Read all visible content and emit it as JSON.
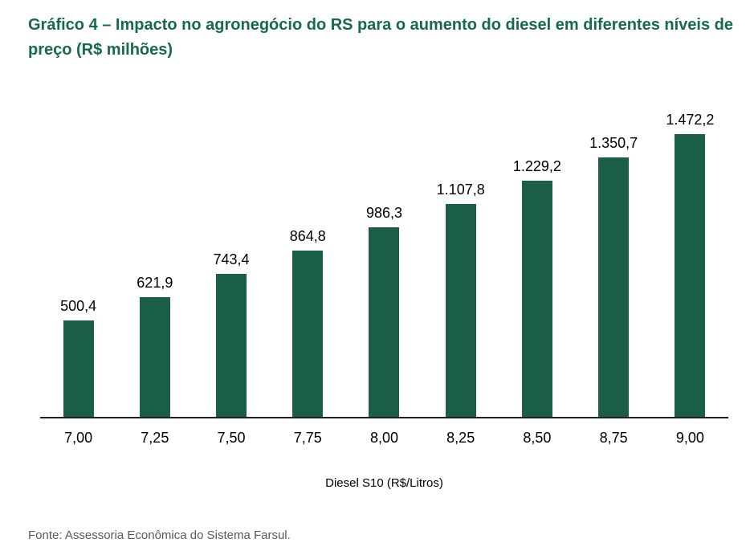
{
  "title": "Gráfico 4 – Impacto no agronegócio do RS para o aumento do diesel em diferentes níveis de preço (R$ milhões)",
  "source": "Fonte: Assessoria Econômica do Sistema Farsul.",
  "colors": {
    "bar": "#1b5e46",
    "title": "#17694e",
    "axis_line": "#1f1f1f",
    "label_text": "#000000",
    "source_text": "#595959"
  },
  "chart_data": {
    "type": "bar",
    "title": "Gráfico 4 – Impacto no agronegócio do RS para o aumento do diesel em diferentes níveis de preço (R$ milhões)",
    "categories": [
      "7,00",
      "7,25",
      "7,50",
      "7,75",
      "8,00",
      "8,25",
      "8,50",
      "8,75",
      "9,00"
    ],
    "values": [
      500.4,
      621.9,
      743.4,
      864.8,
      986.3,
      1107.8,
      1229.2,
      1350.7,
      1472.2
    ],
    "value_labels": [
      "500,4",
      "621,9",
      "743,4",
      "864,8",
      "986,3",
      "1.107,8",
      "1.229,2",
      "1.350,7",
      "1.472,2"
    ],
    "xlabel": "Diesel S10 (R$/Litros)",
    "ylabel": "",
    "ylim": [
      0,
      1472.2
    ],
    "grid": false,
    "legend": false
  }
}
